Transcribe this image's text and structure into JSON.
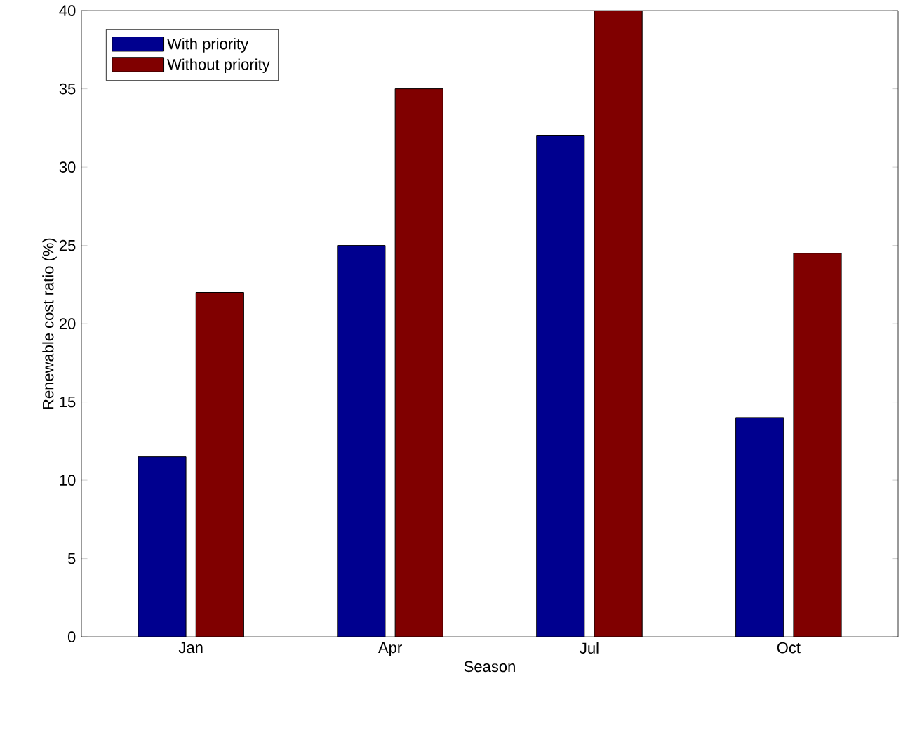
{
  "chart_data": {
    "type": "bar",
    "xlabel": "Season",
    "ylabel": "Renewable cost ratio (%)",
    "categories": [
      "Jan",
      "Apr",
      "Jul",
      "Oct"
    ],
    "series": [
      {
        "name": "With priority",
        "color": "#00008f",
        "values": [
          11.5,
          25,
          32,
          14
        ]
      },
      {
        "name": "Without priority",
        "color": "#800000",
        "values": [
          22,
          35,
          40,
          24.5
        ]
      }
    ],
    "ylim": [
      0,
      40
    ],
    "yticks": [
      0,
      5,
      10,
      15,
      20,
      25,
      30,
      35,
      40
    ],
    "grid": false,
    "legend": "top left"
  }
}
